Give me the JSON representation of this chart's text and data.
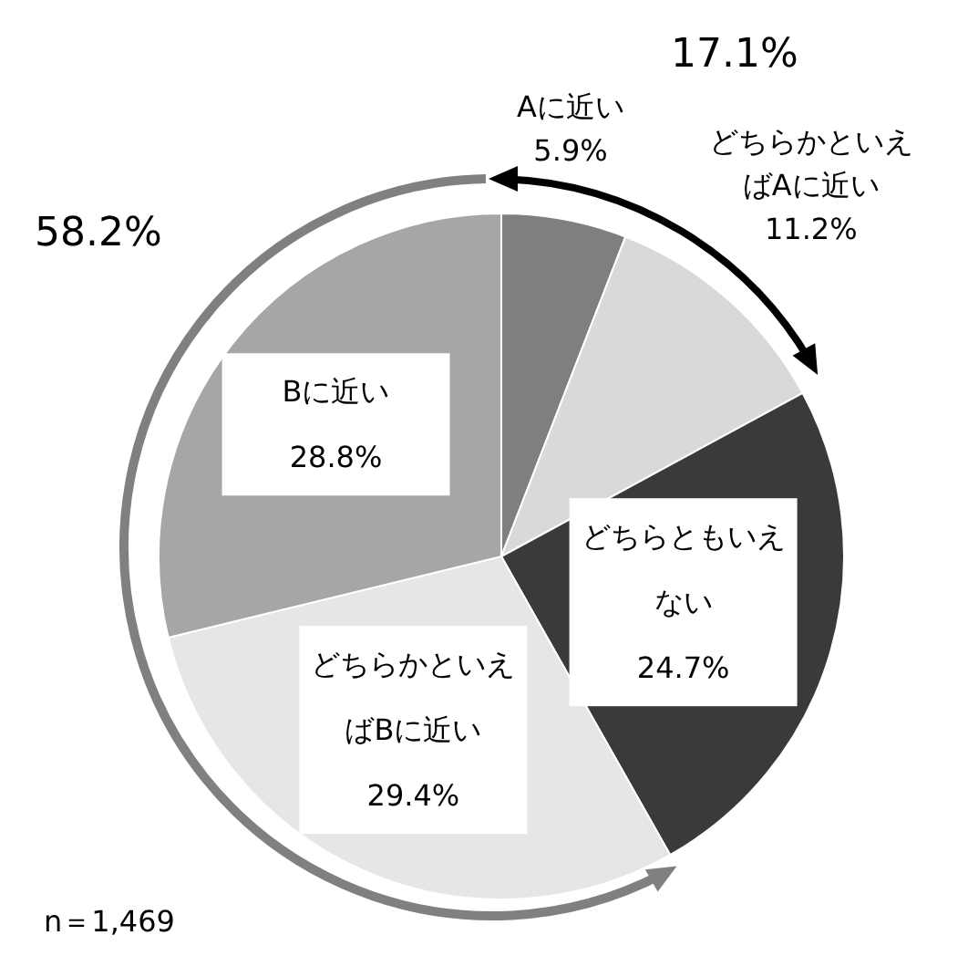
{
  "chart_data": {
    "type": "pie",
    "categories": [
      "Aに近い",
      "どちらかといえばAに近い",
      "どちらともいえない",
      "どちらかといえばBに近い",
      "Bに近い"
    ],
    "values": [
      5.9,
      11.2,
      24.7,
      29.4,
      28.8
    ],
    "value_labels": [
      "5.9%",
      "11.2%",
      "24.7%",
      "29.4%",
      "28.8%"
    ],
    "colors": [
      "#7f7f7f",
      "#d9d9d9",
      "#3a3a3a",
      "#e6e6e6",
      "#a6a6a6"
    ],
    "annotations": [
      "17.1%",
      "58.2%",
      "n＝1,469"
    ],
    "legend": false
  }
}
